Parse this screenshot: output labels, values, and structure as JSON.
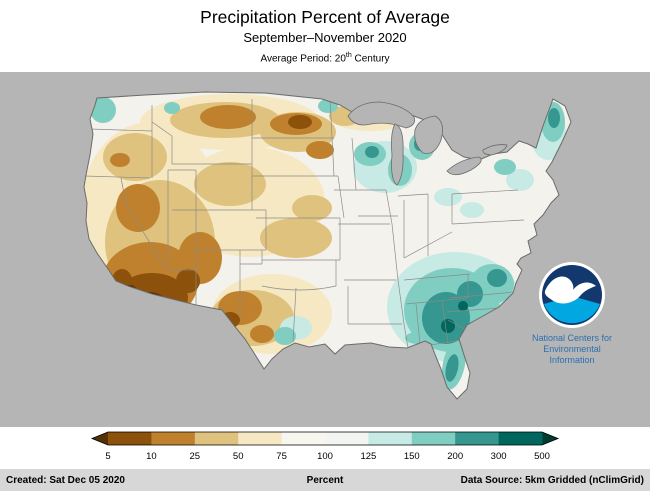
{
  "header": {
    "title": "Precipitation Percent of Average",
    "subtitle": "September–November 2020",
    "period_prefix": "Average Period: 20",
    "period_sup": "th",
    "period_suffix": " Century"
  },
  "map": {
    "background_color": "#b5b5b5",
    "land_color": "#f4f2ec",
    "noaa": {
      "line1": "National Centers for",
      "line2": "Environmental",
      "line3": "Information",
      "logo_navy": "#12386d",
      "logo_cyan": "#00a7e1",
      "text_color": "#2e6fb0"
    }
  },
  "legend": {
    "tick_labels": [
      "5",
      "10",
      "25",
      "50",
      "75",
      "100",
      "125",
      "150",
      "200",
      "300",
      "500"
    ],
    "segment_colors": [
      "#543005",
      "#8c510a",
      "#bf812d",
      "#dfc27d",
      "#f6e8c3",
      "#f7f6ef",
      "#f2f5f1",
      "#c7eae5",
      "#80cdc1",
      "#35978f",
      "#01665e",
      "#003c30"
    ]
  },
  "footer": {
    "created": "Created: Sat Dec 05 2020",
    "percent": "Percent",
    "source": "Data Source: 5km Gridded (nClimGrid)"
  }
}
